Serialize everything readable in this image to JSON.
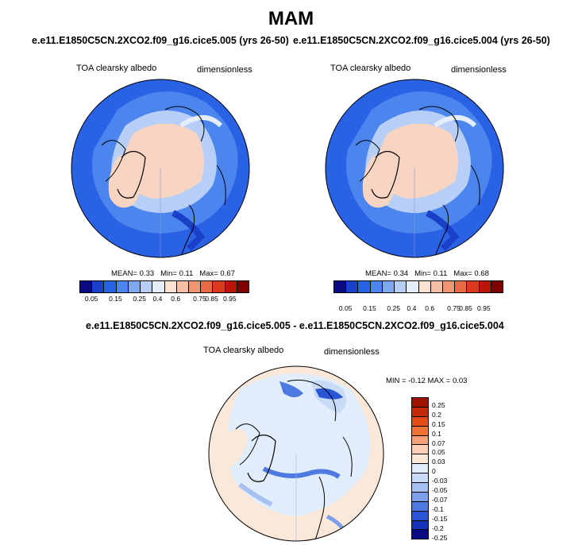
{
  "season": "MAM",
  "colors": {
    "top_scale": [
      "#0a0a85",
      "#1a3fc9",
      "#2a62e6",
      "#4b86ee",
      "#7fa8f2",
      "#b7cff6",
      "#e6eefb",
      "#fbe2d3",
      "#f6bfa6",
      "#f19572",
      "#ea6a45",
      "#dc3a1e",
      "#b81608",
      "#800000"
    ],
    "diff_scale": [
      "#a01400",
      "#c42a0a",
      "#e24c17",
      "#f07235",
      "#f6a07a",
      "#fbd0b5",
      "#fce8d8",
      "#e2edfb",
      "#c7daf6",
      "#a5c0f1",
      "#7b9fea",
      "#4e79e1",
      "#2a55d4",
      "#1533b8",
      "#0a0a85"
    ]
  },
  "panels": [
    {
      "case_title": "e.e11.E1850C5CN.2XCO2.f09_g16.cice5.005 (yrs 26-50)",
      "variable": "TOA clearsky albedo",
      "units": "dimensionless",
      "mean_label": "MEAN=",
      "mean": "0.33",
      "min_label": "Min=",
      "min": "0.11",
      "max_label": "Max=",
      "max": "0.67",
      "colorbar_ticks": [
        "0.05",
        "0.15",
        "0.25",
        "0.4",
        "0.6",
        "0.75",
        "0.85",
        "0.95"
      ]
    },
    {
      "case_title": "e.e11.E1850C5CN.2XCO2.f09_g16.cice5.004 (yrs 26-50)",
      "variable": "TOA clearsky albedo",
      "units": "dimensionless",
      "mean_label": "MEAN=",
      "mean": "0.34",
      "min_label": "Min=",
      "min": "0.11",
      "max_label": "Max=",
      "max": "0.68",
      "colorbar_ticks": [
        "0.05",
        "0.15",
        "0.25",
        "0.4",
        "0.6",
        "0.75",
        "0.85",
        "0.95"
      ]
    }
  ],
  "difference": {
    "title": "e.e11.E1850C5CN.2XCO2.f09_g16.cice5.005 - e.e11.E1850C5CN.2XCO2.f09_g16.cice5.004",
    "variable": "TOA clearsky albedo",
    "units": "dimensionless",
    "min_label": "MIN =",
    "min": "-0.12",
    "max_label": "MAX =",
    "max": "0.03",
    "colorbar_ticks": [
      "0.25",
      "0.2",
      "0.15",
      "0.1",
      "0.07",
      "0.05",
      "0.03",
      "0",
      "-0.03",
      "-0.05",
      "-0.07",
      "-0.1",
      "-0.15",
      "-0.2",
      "-0.25"
    ]
  }
}
